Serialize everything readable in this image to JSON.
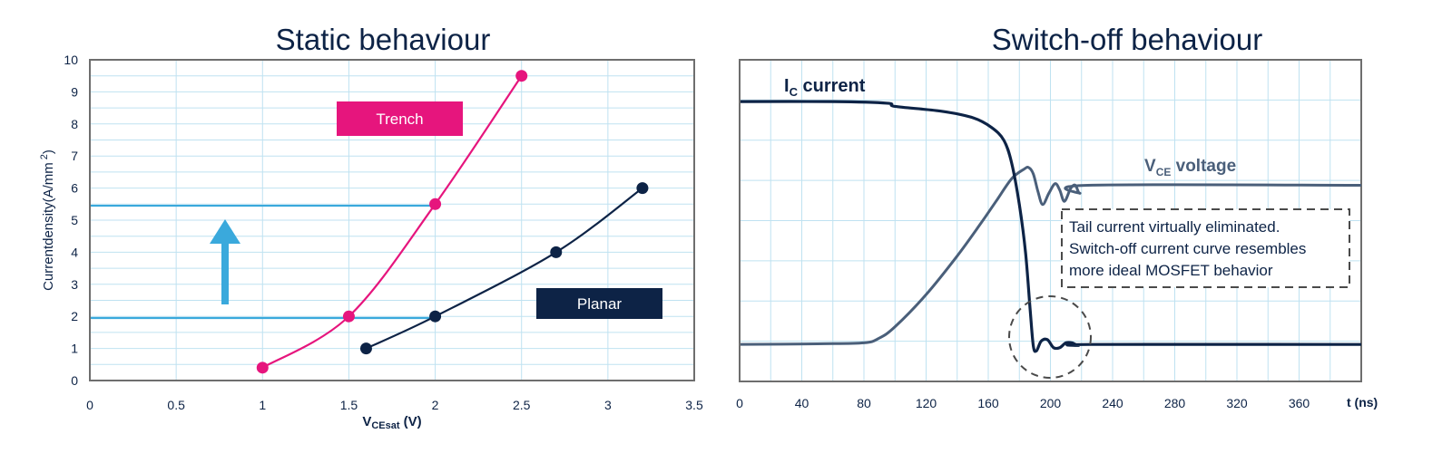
{
  "colors": {
    "navy": "#0d2346",
    "magenta": "#e6157d",
    "cyan": "#3aa9dc",
    "grid": "#bfe2f1",
    "frame": "#6e6e6e",
    "vce": "#4a5f7a"
  },
  "chart_data": [
    {
      "type": "line",
      "title": "Static behaviour",
      "xlabel": {
        "main": "V",
        "sub": "CEsat",
        "suffix": " (V)"
      },
      "ylabel": {
        "main": "Currentdensity(A/mm",
        "sup": "2",
        "suffix": ")"
      },
      "xlim": [
        0,
        3.5
      ],
      "ylim": [
        0,
        10
      ],
      "xticks": [
        "0",
        "0.5",
        "1",
        "1.5",
        "2",
        "2.5",
        "3",
        "3.5"
      ],
      "yticks": [
        "0",
        "1",
        "2",
        "3",
        "4",
        "5",
        "6",
        "7",
        "8",
        "9",
        "10"
      ],
      "grid": true,
      "series": [
        {
          "name": "Trench",
          "color": "#e6157d",
          "points": [
            [
              1.0,
              0.4
            ],
            [
              1.5,
              2.0
            ],
            [
              2.0,
              5.5
            ],
            [
              2.5,
              9.5
            ]
          ]
        },
        {
          "name": "Planar",
          "color": "#0d2346",
          "points": [
            [
              1.6,
              1.0
            ],
            [
              2.0,
              2.0
            ],
            [
              2.7,
              4.0
            ],
            [
              3.2,
              6.0
            ]
          ]
        }
      ],
      "reference_lines": [
        5.45,
        1.95
      ],
      "annotation": "arrow-up-icon"
    },
    {
      "type": "line",
      "title": "Switch-off behaviour",
      "xlabel": "t (ns)",
      "xlim": [
        0,
        400
      ],
      "xticks": [
        "0",
        "40",
        "80",
        "120",
        "160",
        "200",
        "240",
        "280",
        "320",
        "360"
      ],
      "grid": true,
      "series": [
        {
          "name": "I",
          "sub": "C",
          "suffix": " current",
          "color": "#0d2346",
          "points": [
            [
              0,
              8.7
            ],
            [
              60,
              8.7
            ],
            [
              95,
              8.65
            ],
            [
              100,
              8.55
            ],
            [
              130,
              8.4
            ],
            [
              150,
              8.2
            ],
            [
              162,
              7.9
            ],
            [
              170,
              7.5
            ],
            [
              175,
              6.8
            ],
            [
              180,
              5.5
            ],
            [
              184,
              4.0
            ],
            [
              187,
              2.2
            ],
            [
              189,
              1.1
            ],
            [
              191,
              0.95
            ],
            [
              194,
              1.25
            ],
            [
              198,
              1.3
            ],
            [
              202,
              1.05
            ],
            [
              206,
              1.05
            ],
            [
              210,
              1.2
            ],
            [
              214,
              1.2
            ],
            [
              218,
              1.12
            ],
            [
              226,
              1.15
            ],
            [
              400,
              1.15
            ]
          ]
        },
        {
          "name": "V",
          "sub": "CE",
          "suffix": " voltage",
          "color": "#4a5f7a",
          "points": [
            [
              0,
              1.15
            ],
            [
              50,
              1.17
            ],
            [
              80,
              1.2
            ],
            [
              90,
              1.35
            ],
            [
              100,
              1.7
            ],
            [
              120,
              2.7
            ],
            [
              140,
              3.9
            ],
            [
              155,
              4.9
            ],
            [
              165,
              5.6
            ],
            [
              175,
              6.3
            ],
            [
              183,
              6.6
            ],
            [
              186,
              6.65
            ],
            [
              189,
              6.45
            ],
            [
              192,
              5.9
            ],
            [
              195,
              5.5
            ],
            [
              199,
              5.85
            ],
            [
              203,
              6.15
            ],
            [
              206,
              5.95
            ],
            [
              209,
              5.6
            ],
            [
              213,
              6.0
            ],
            [
              216,
              6.1
            ],
            [
              219,
              5.85
            ],
            [
              224,
              6.1
            ],
            [
              400,
              6.1
            ]
          ]
        }
      ],
      "note": [
        "Tail current virtually eliminated.",
        "Switch-off current curve resembles",
        "more ideal MOSFET behavior"
      ]
    }
  ]
}
